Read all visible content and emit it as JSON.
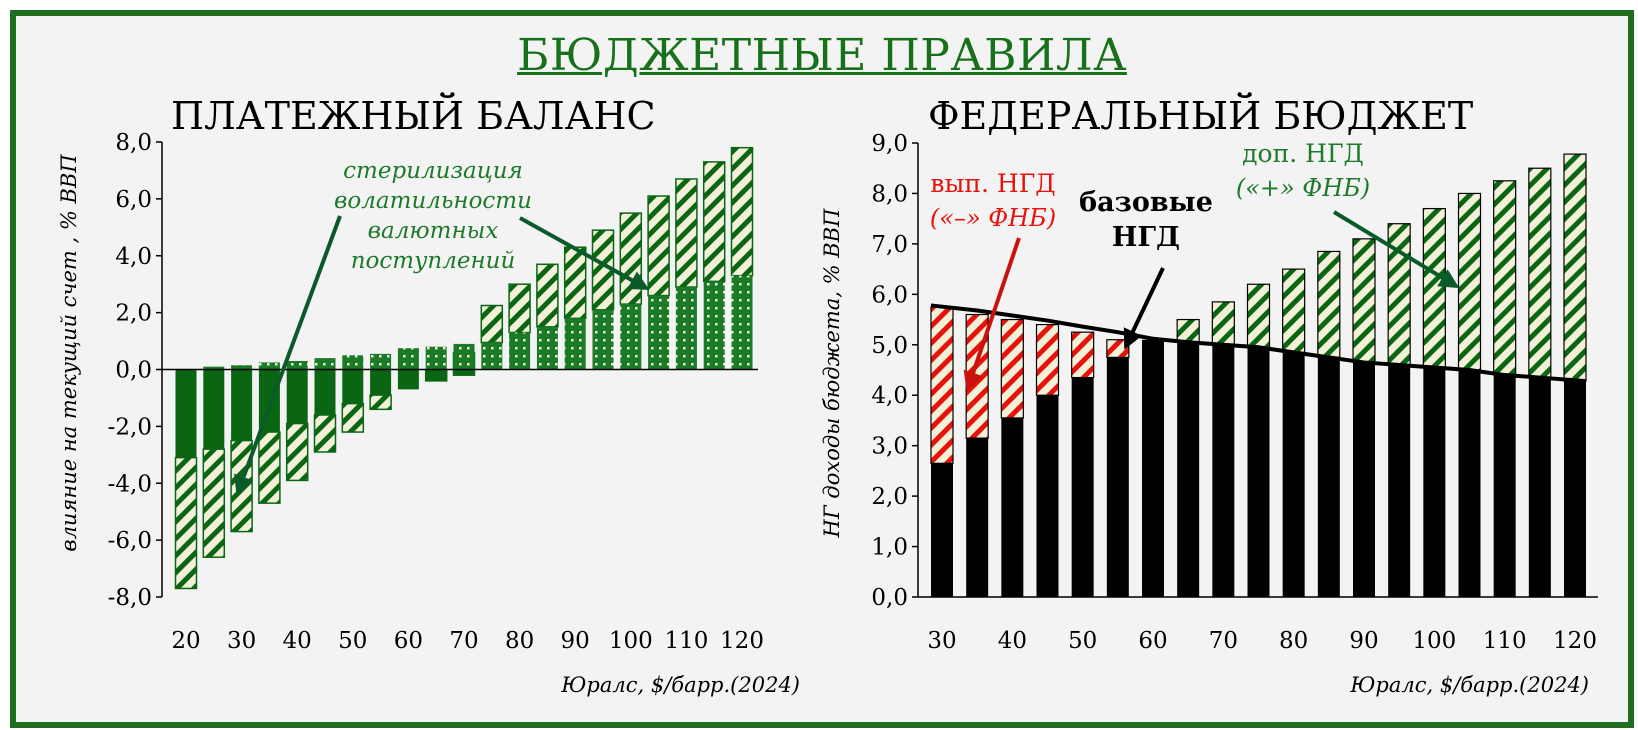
{
  "title": "БЮДЖЕТНЫЕ ПРАВИЛА",
  "colors": {
    "dark_green": "#0b6614",
    "medium_green": "#1a7a28",
    "hatch_light": "#f3f0d8",
    "red": "#e8120c",
    "black": "#000000",
    "frame": "#1f6e1f"
  },
  "chart_data": [
    {
      "type": "bar",
      "title": "ПЛАТЕЖНЫЙ БАЛАНС",
      "ylabel": "влияние на текущий счет , % ВВП",
      "xlabel": "Юралс, $/барр.(2024)",
      "ylim": [
        -8,
        8
      ],
      "y_ticks": [
        "-8,0",
        "-6,0",
        "-4,0",
        "-2,0",
        "0,0",
        "2,0",
        "4,0",
        "6,0",
        "8,0"
      ],
      "x_ticks": [
        "20",
        "30",
        "40",
        "50",
        "60",
        "70",
        "80",
        "90",
        "100",
        "110",
        "120"
      ],
      "x": [
        20,
        25,
        30,
        35,
        40,
        45,
        50,
        55,
        60,
        65,
        70,
        75,
        80,
        85,
        90,
        95,
        100,
        105,
        110,
        115,
        120
      ],
      "series": [
        {
          "values": [
            -3.1,
            -2.8,
            -2.5,
            -2.2,
            -1.9,
            -1.6,
            -1.2,
            -0.9,
            -0.7,
            -0.4,
            -0.2,
            0.0,
            0.0,
            0.0,
            0.0,
            0.0,
            0.0,
            0.0,
            0.0,
            0.0,
            0.0
          ]
        },
        {
          "values": [
            0.0,
            0.1,
            0.15,
            0.25,
            0.3,
            0.4,
            0.5,
            0.55,
            0.75,
            0.8,
            0.9,
            0.95,
            1.3,
            1.5,
            1.8,
            2.1,
            2.3,
            2.6,
            2.9,
            3.1,
            3.3
          ]
        },
        {
          "values": [
            -4.6,
            -3.8,
            -3.2,
            -2.5,
            -2.0,
            -1.3,
            -1.0,
            -0.5,
            0.0,
            0.4,
            0.8,
            1.3,
            1.7,
            2.2,
            2.5,
            2.8,
            3.2,
            3.5,
            3.8,
            4.2,
            4.5
          ]
        }
      ],
      "annotation": [
        "стерилизация",
        "волатильности",
        "валютных",
        "поступлений"
      ]
    },
    {
      "type": "bar",
      "title": "ФЕДЕРАЛЬНЫЙ БЮДЖЕТ",
      "ylabel": "НГ доходы бюджета, % ВВП",
      "xlabel": "Юралс, $/барр.(2024)",
      "ylim": [
        0,
        9
      ],
      "y_ticks": [
        "0,0",
        "1,0",
        "2,0",
        "3,0",
        "4,0",
        "5,0",
        "6,0",
        "7,0",
        "8,0",
        "9,0"
      ],
      "x_ticks": [
        "30",
        "40",
        "50",
        "60",
        "70",
        "80",
        "90",
        "100",
        "110",
        "120"
      ],
      "x": [
        30,
        35,
        40,
        45,
        50,
        55,
        60,
        65,
        70,
        75,
        80,
        85,
        90,
        95,
        100,
        105,
        110,
        115,
        120
      ],
      "series": [
        {
          "values": [
            2.65,
            3.15,
            3.55,
            4.0,
            4.35,
            4.75,
            5.1,
            5.05,
            5.0,
            4.95,
            4.85,
            4.75,
            4.65,
            4.6,
            4.55,
            4.5,
            4.4,
            4.35,
            4.28
          ]
        },
        {
          "values": [
            3.1,
            2.45,
            1.95,
            1.4,
            0.9,
            0.35,
            0.0,
            0.0,
            0.0,
            0.0,
            0.0,
            0.0,
            0.0,
            0.0,
            0.0,
            0.0,
            0.0,
            0.0,
            0.0
          ]
        },
        {
          "values": [
            0.0,
            0.0,
            0.0,
            0.0,
            0.0,
            0.0,
            0.0,
            0.45,
            0.85,
            1.25,
            1.65,
            2.1,
            2.45,
            2.8,
            3.15,
            3.5,
            3.85,
            4.15,
            4.5
          ]
        },
        {
          "values": [
            5.78,
            5.68,
            5.58,
            5.48,
            5.36,
            5.25,
            5.12,
            5.05,
            5.0,
            4.95,
            4.85,
            4.75,
            4.65,
            4.6,
            4.55,
            4.5,
            4.4,
            4.35,
            4.28
          ]
        }
      ],
      "annotations": {
        "vyp": [
          "вып. НГД",
          "(«–» ФНБ)"
        ],
        "base": [
          "базовые",
          "НГД"
        ],
        "dop": [
          "доп. НГД",
          "(«+» ФНБ)"
        ]
      }
    }
  ]
}
